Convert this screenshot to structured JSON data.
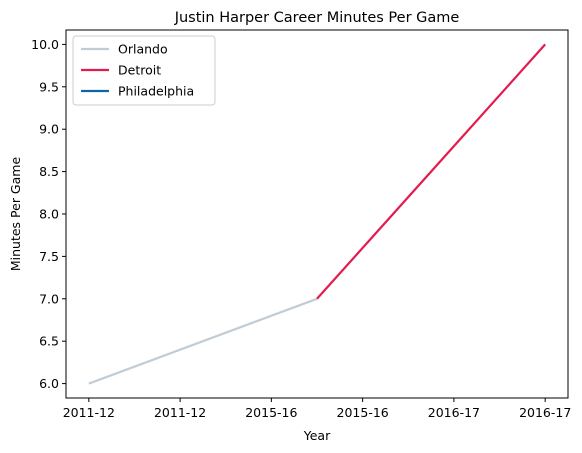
{
  "chart_data": {
    "type": "line",
    "title": "Justin Harper  Career Minutes Per Game",
    "xlabel": "Year",
    "ylabel": "Minutes Per Game",
    "x_tick_labels": [
      "2011-12",
      "2011-12",
      "2015-16",
      "2015-16",
      "2016-17",
      "2016-17"
    ],
    "y_ticks": [
      6.0,
      6.5,
      7.0,
      7.5,
      8.0,
      8.5,
      9.0,
      9.5,
      10.0
    ],
    "y_tick_labels": [
      "6.0",
      "6.5",
      "7.0",
      "7.5",
      "8.0",
      "8.5",
      "9.0",
      "9.5",
      "10.0"
    ],
    "ylim": [
      5.83,
      10.17
    ],
    "xlim": [
      -0.25,
      5.25
    ],
    "grid": false,
    "legend_placement": "upper-left",
    "series": [
      {
        "name": "Orlando",
        "color": "#c0ccd6",
        "x": [
          0,
          2.5
        ],
        "y": [
          6.0,
          7.0
        ]
      },
      {
        "name": "Detroit",
        "color": "#e31b4f",
        "x": [
          2.5,
          5
        ],
        "y": [
          7.0,
          10.0
        ]
      },
      {
        "name": "Philadelphia",
        "color": "#1064a8",
        "x": [],
        "y": []
      }
    ]
  }
}
